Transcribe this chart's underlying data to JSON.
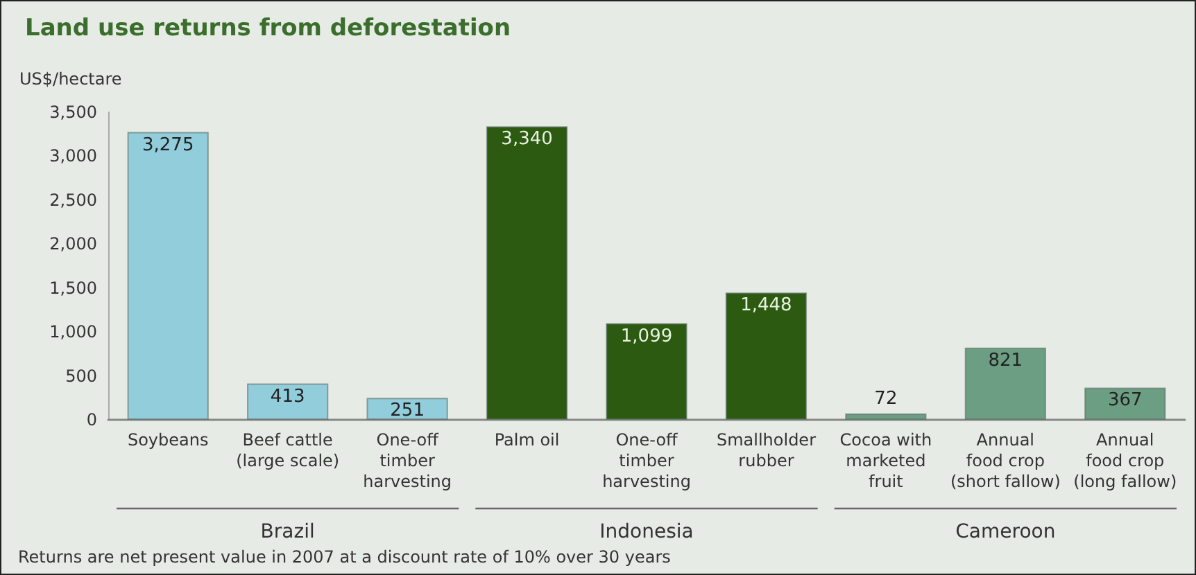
{
  "chart_data": {
    "type": "bar",
    "title": "Land use returns from deforestation",
    "ylabel": "US$/hectare",
    "categories": [
      "Soybeans",
      "Beef cattle\n(large scale)",
      "One-off\ntimber\nharvesting",
      "Palm oil",
      "One-off\ntimber\nharvesting",
      "Smallholder\nrubber",
      "Cocoa with\nmarketed\nfruit",
      "Annual\nfood crop\n(short fallow)",
      "Annual\nfood crop\n(long fallow)"
    ],
    "values": [
      3275,
      413,
      251,
      3340,
      1099,
      1448,
      72,
      821,
      367
    ],
    "value_labels": [
      "3,275",
      "413",
      "251",
      "3,340",
      "1,099",
      "1,448",
      "72",
      "821",
      "367"
    ],
    "colors": [
      "#92cddc",
      "#92cddc",
      "#92cddc",
      "#2b5a10",
      "#2b5a10",
      "#2b5a10",
      "#6b9e82",
      "#6b9e82",
      "#6b9e82"
    ],
    "ylim": [
      0,
      3500
    ],
    "yticks": [
      0,
      500,
      {
        "value": 1000,
        "label": "1,000"
      },
      {
        "value": 1500,
        "label": "1,500"
      },
      {
        "value": 2000,
        "label": "2,000"
      },
      {
        "value": 2500,
        "label": "2,500"
      },
      {
        "value": 3000,
        "label": "3,000"
      },
      {
        "value": 3500,
        "label": "3,500"
      }
    ],
    "grid": false,
    "annotations": [
      "Brazil",
      "Indonesia",
      "Cameroon",
      "Returns are net present value in 2007 at a discount rate of 10% over 30 years"
    ]
  }
}
